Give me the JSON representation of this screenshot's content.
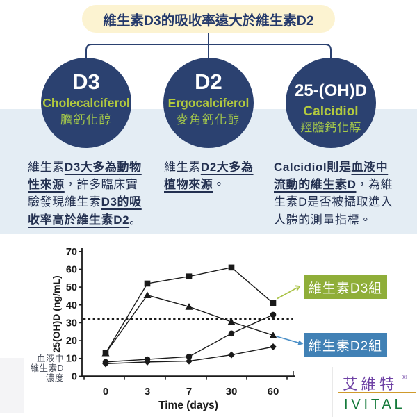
{
  "banner": {
    "title": "維生素D3的吸收率遠大於維生素D2"
  },
  "nodes": [
    {
      "abbr": "D3",
      "en": "Cholecalciferol",
      "zh": "膽鈣化醇"
    },
    {
      "abbr": "D2",
      "en": "Ergocalciferol",
      "zh": "麥角鈣化醇"
    },
    {
      "abbr": "25-(OH)D",
      "en": "Calcidiol",
      "zh": "羥膽鈣化醇"
    }
  ],
  "columns": [
    {
      "segments": [
        {
          "t": "維生素"
        },
        {
          "t": "D3大多為動物\n性來源",
          "b": true,
          "u": true
        },
        {
          "t": "，許多臨床實\n驗發現維生素"
        },
        {
          "t": "D3的吸\n收率高於維生素D2",
          "b": true,
          "u": true
        },
        {
          "t": "。"
        }
      ]
    },
    {
      "segments": [
        {
          "t": "維生素"
        },
        {
          "t": "D2大多為\n植物來源",
          "b": true,
          "u": true
        },
        {
          "t": "。"
        }
      ]
    },
    {
      "segments": [
        {
          "t": "Calcidiol則是",
          "b": true
        },
        {
          "t": "血液中\n流動的維生素D",
          "b": true,
          "u": true
        },
        {
          "t": "，為維\n生素D是否被攝取進入\n人體的測量指標。"
        }
      ]
    }
  ],
  "chart_data": {
    "type": "line",
    "x_categories": [
      "0",
      "3",
      "7",
      "30",
      "60"
    ],
    "xlabel": "Time (days)",
    "ylabel": "25(OH)D (ng/mL)",
    "y_ticks": [
      0,
      10,
      20,
      30,
      40,
      50,
      60,
      70
    ],
    "ylim": [
      0,
      70
    ],
    "grid": false,
    "reference_line": {
      "value": 32,
      "style": "dotted"
    },
    "series": [
      {
        "name": "",
        "marker": "triangle",
        "values": [
          13,
          45.5,
          39,
          30.5,
          23
        ]
      },
      {
        "name": "",
        "marker": "circle",
        "values": [
          8,
          9.5,
          11,
          24,
          34.5
        ]
      },
      {
        "name": "維生素D2組",
        "marker": "diamond",
        "values": [
          7,
          8,
          8.5,
          12,
          16.5
        ]
      },
      {
        "name": "維生素D3組",
        "marker": "square",
        "values": [
          13,
          52,
          56,
          61,
          41
        ]
      }
    ],
    "y_axis_note": "血液中\n維生素D\n濃度",
    "legend_position": "right"
  },
  "legend": {
    "d3_label": "維生素D3組",
    "d2_label": "維生素D2組"
  },
  "logo": {
    "zh": "艾維特",
    "reg": "®",
    "en": "IVITAL"
  },
  "colors": {
    "banner_bg": "#fcf3d1",
    "navy": "#2b4170",
    "navy_text": "#24396b",
    "green_text": "#b2c93e",
    "green_zh": "#a5c94a",
    "band": "#e4edf4",
    "col_text": "#233050",
    "legend_green": "#8fae39",
    "legend_blue": "#4181b5",
    "arrow_green": "#a9c245",
    "arrow_blue": "#4b8fc7",
    "ink": "#1a1a1a",
    "note_text": "#454b58",
    "logo_purple": "#6f42a5",
    "logo_orange": "#cf9a2c",
    "logo_green": "#157a3b"
  }
}
